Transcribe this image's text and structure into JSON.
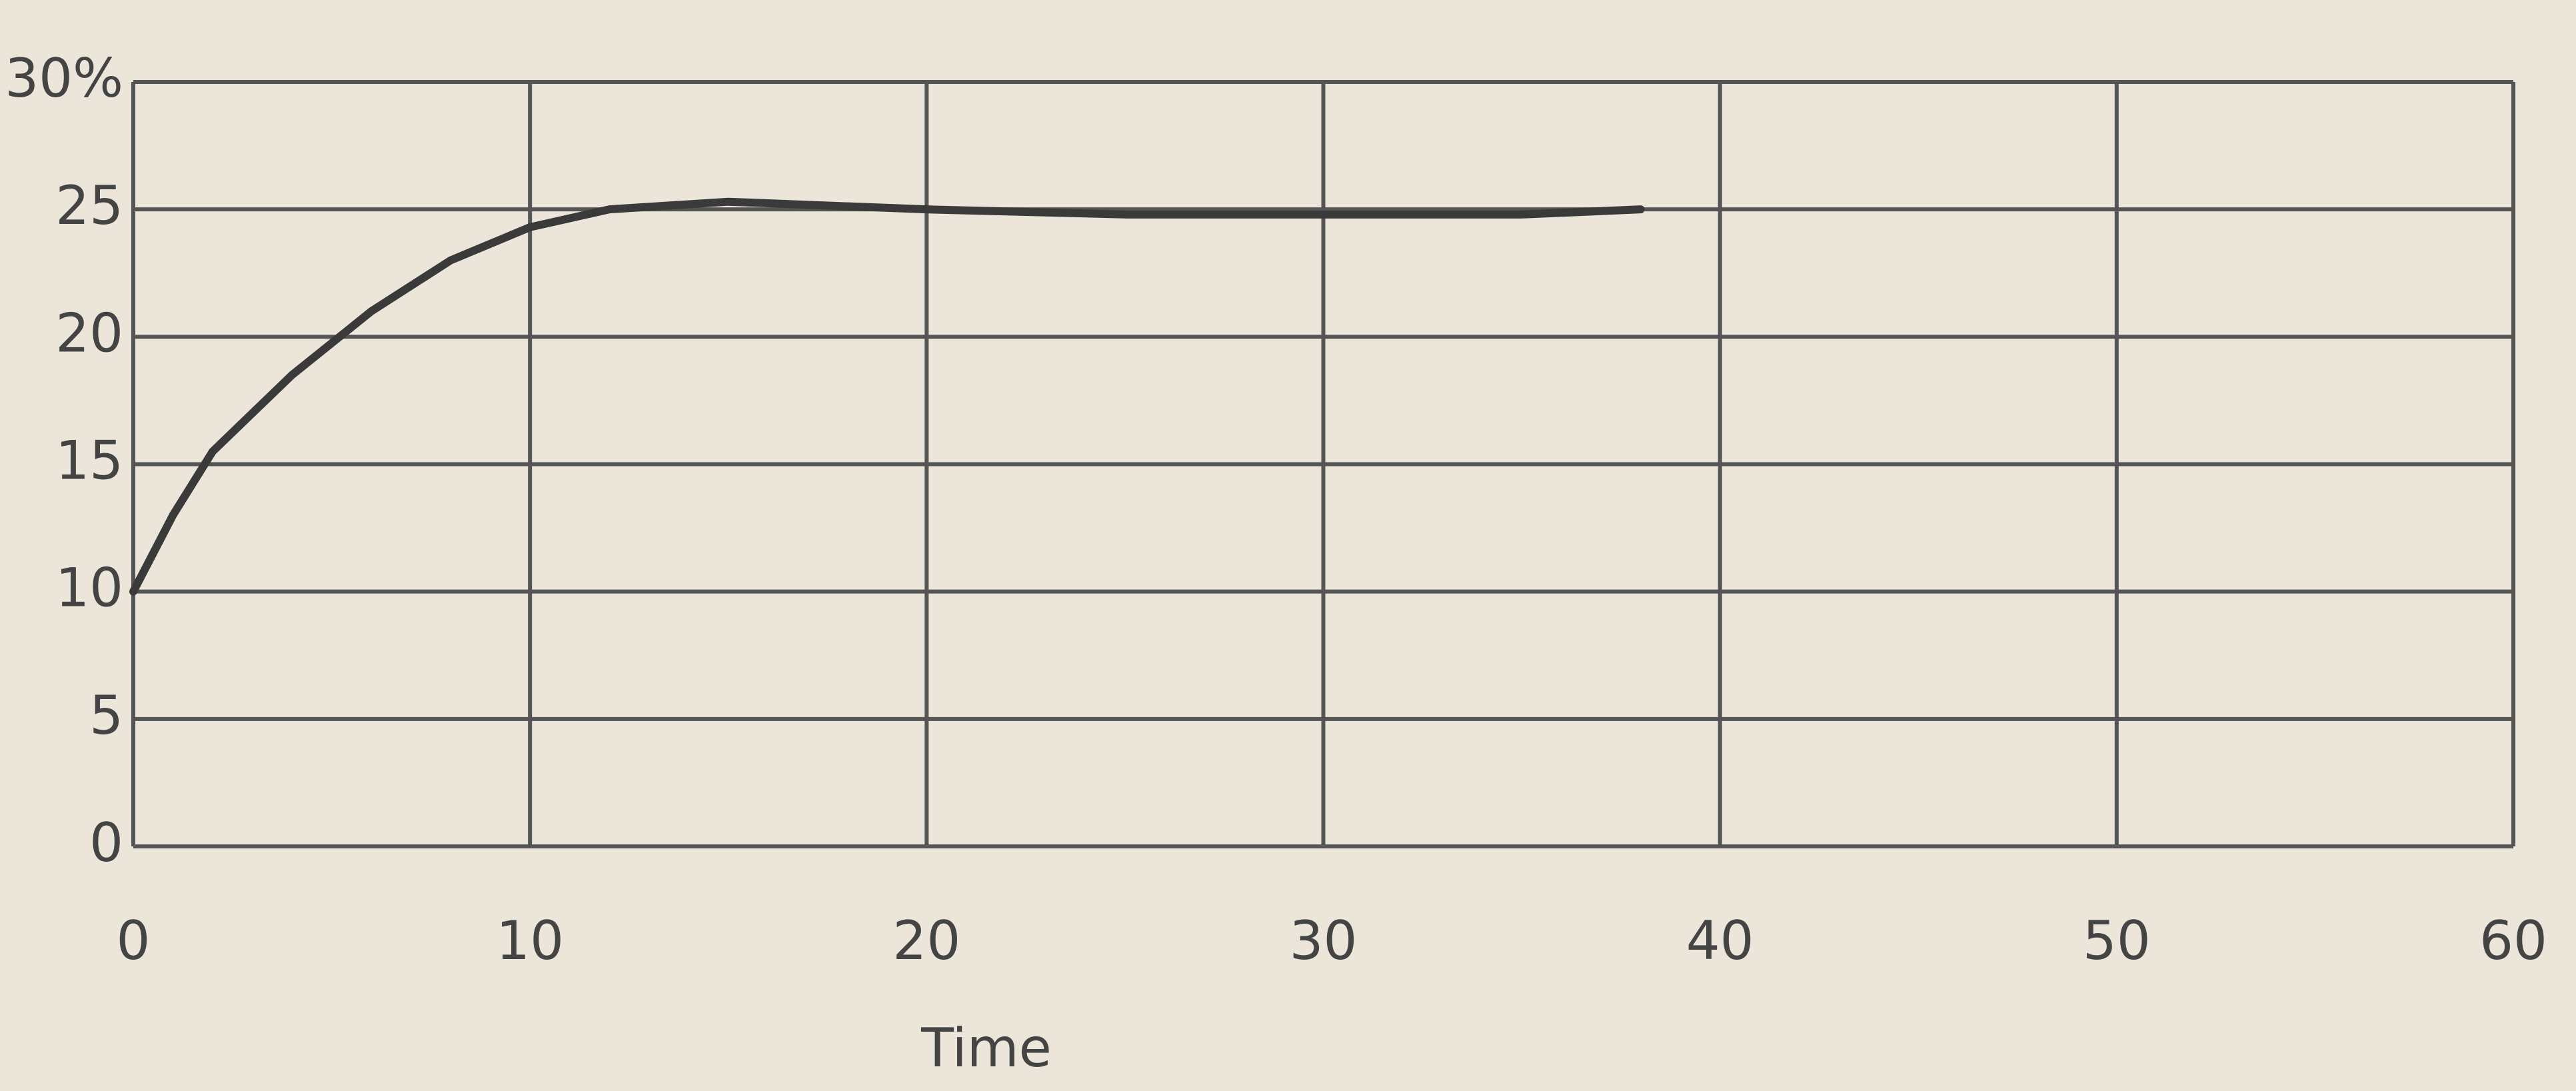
{
  "chart_data": {
    "type": "line",
    "x_label": "Time",
    "x": [
      0,
      1,
      2,
      4,
      6,
      8,
      10,
      12,
      15,
      20,
      25,
      30,
      35,
      38
    ],
    "series": [
      {
        "color": "#3a3a3a",
        "values": [
          10,
          13,
          15.5,
          18.5,
          21,
          23,
          24.3,
          25,
          25.3,
          25,
          24.8,
          24.8,
          24.8,
          25
        ]
      }
    ],
    "xlim": [
      0,
      60
    ],
    "xticks": [
      0,
      10,
      20,
      30,
      40,
      50,
      60
    ],
    "ylim": [
      0,
      30
    ],
    "yticks": [
      0,
      5,
      10,
      15,
      20,
      25,
      {
        "value": 30,
        "label": "30%"
      }
    ],
    "grid": true
  }
}
